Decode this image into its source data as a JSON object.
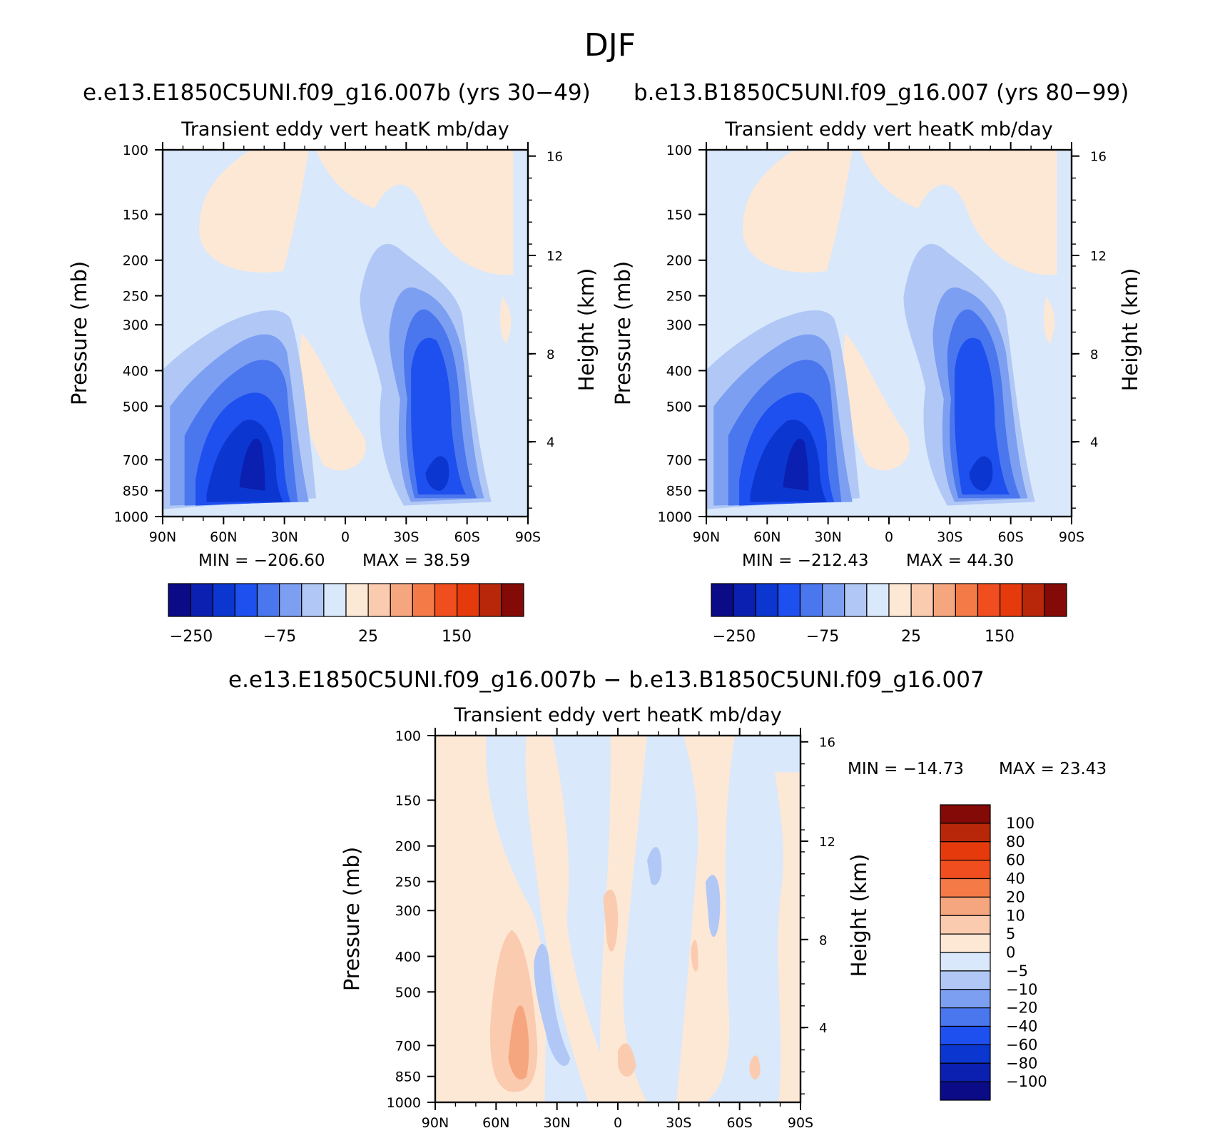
{
  "figure_title": "DJF",
  "colors": {
    "scale_main": [
      "#0b0b87",
      "#0b1fb0",
      "#0b36d0",
      "#1e4fef",
      "#4a76ee",
      "#7c9ff2",
      "#b1c8f6",
      "#d9e8fb",
      "#fde8d6",
      "#fbcbb0",
      "#f6a67e",
      "#f47a47",
      "#f14e1f",
      "#e53b0c",
      "#b8270a",
      "#840a07"
    ],
    "scale_diff": [
      "#0b0b87",
      "#0b1fb0",
      "#0b36d0",
      "#1e4fef",
      "#4a76ee",
      "#7c9ff2",
      "#b1c8f6",
      "#d9e8fb",
      "#fde8d6",
      "#fbcbb0",
      "#f6a67e",
      "#f47a47",
      "#f14e1f",
      "#e53b0c",
      "#b8270a",
      "#840a07"
    ]
  },
  "chart_data": [
    {
      "id": "panel-1",
      "type": "heatmap",
      "case_title": "e.e13.E1850C5UNI.f09_g16.007b (yrs 30−49)",
      "title": "Transient eddy vert heatK mb/day",
      "ylabel": "Pressure (mb)",
      "y2label": "Height (km)",
      "x_ticks": [
        "90N",
        "60N",
        "30N",
        "0",
        "30S",
        "60S",
        "90S"
      ],
      "y_ticks": [
        "100",
        "150",
        "200",
        "250",
        "300",
        "400",
        "500",
        "700",
        "850",
        "1000"
      ],
      "y2_ticks": [
        "16",
        "12",
        "8",
        "4"
      ],
      "ylim": [
        1000,
        100
      ],
      "min_label": "MIN = −206.60",
      "max_label": "MAX =  38.59",
      "min": -206.6,
      "max": 38.59,
      "colorbar_labels": [
        "−250",
        "−75",
        "25",
        "150"
      ]
    },
    {
      "id": "panel-2",
      "type": "heatmap",
      "case_title": "b.e13.B1850C5UNI.f09_g16.007 (yrs 80−99)",
      "title": "Transient eddy vert heatK mb/day",
      "ylabel": "Pressure (mb)",
      "y2label": "Height (km)",
      "x_ticks": [
        "90N",
        "60N",
        "30N",
        "0",
        "30S",
        "60S",
        "90S"
      ],
      "y_ticks": [
        "100",
        "150",
        "200",
        "250",
        "300",
        "400",
        "500",
        "700",
        "850",
        "1000"
      ],
      "y2_ticks": [
        "16",
        "12",
        "8",
        "4"
      ],
      "ylim": [
        1000,
        100
      ],
      "min_label": "MIN = −212.43",
      "max_label": "MAX =  44.30",
      "min": -212.43,
      "max": 44.3,
      "colorbar_labels": [
        "−250",
        "−75",
        "25",
        "150"
      ]
    },
    {
      "id": "panel-3",
      "type": "heatmap",
      "case_title": "e.e13.E1850C5UNI.f09_g16.007b − b.e13.B1850C5UNI.f09_g16.007",
      "title": "Transient eddy vert heatK mb/day",
      "ylabel": "Pressure (mb)",
      "y2label": "Height (km)",
      "x_ticks": [
        "90N",
        "60N",
        "30N",
        "0",
        "30S",
        "60S",
        "90S"
      ],
      "y_ticks": [
        "100",
        "150",
        "200",
        "250",
        "300",
        "400",
        "500",
        "700",
        "850",
        "1000"
      ],
      "y2_ticks": [
        "16",
        "12",
        "8",
        "4"
      ],
      "ylim": [
        1000,
        100
      ],
      "min_label": "MIN = −14.73",
      "max_label": "MAX =  23.43",
      "min": -14.73,
      "max": 23.43,
      "colorbar_labels": [
        "100",
        "80",
        "60",
        "40",
        "20",
        "10",
        "5",
        "0",
        "−5",
        "−10",
        "−20",
        "−40",
        "−60",
        "−80",
        "−100"
      ]
    }
  ]
}
